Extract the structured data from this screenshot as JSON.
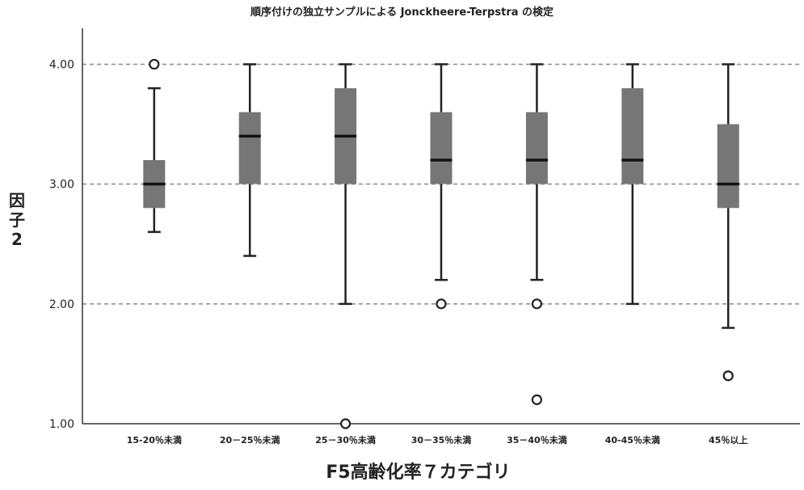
{
  "chart_data": {
    "type": "boxplot",
    "title": "順序付けの独立サンプルによる Jonckheere-Terpstra の検定",
    "xlabel": "F5高齢化率７カテゴリ",
    "ylabel": "因子2",
    "ylim": [
      1.0,
      4.3
    ],
    "yticks": [
      "1.00",
      "2.00",
      "3.00",
      "4.00"
    ],
    "grid": "horizontal dashed at 2.00, 3.00, 4.00",
    "box_color": "#767676",
    "categories": [
      "15-20％未満",
      "20－25％未満",
      "25－30％未満",
      "30－35％未満",
      "35－40％未満",
      "40-45％未満",
      "45％以上"
    ],
    "boxes": [
      {
        "whisker_low": 2.6,
        "q1": 2.8,
        "median": 3.0,
        "q3": 3.2,
        "whisker_high": 3.8,
        "outliers": [
          4.0
        ]
      },
      {
        "whisker_low": 2.4,
        "q1": 3.0,
        "median": 3.4,
        "q3": 3.6,
        "whisker_high": 4.0,
        "outliers": []
      },
      {
        "whisker_low": 2.0,
        "q1": 3.0,
        "median": 3.4,
        "q3": 3.8,
        "whisker_high": 4.0,
        "outliers": [
          1.0
        ]
      },
      {
        "whisker_low": 2.2,
        "q1": 3.0,
        "median": 3.2,
        "q3": 3.6,
        "whisker_high": 4.0,
        "outliers": [
          2.0
        ]
      },
      {
        "whisker_low": 2.2,
        "q1": 3.0,
        "median": 3.2,
        "q3": 3.6,
        "whisker_high": 4.0,
        "outliers": [
          2.0,
          1.2
        ]
      },
      {
        "whisker_low": 2.0,
        "q1": 3.0,
        "median": 3.2,
        "q3": 3.8,
        "whisker_high": 4.0,
        "outliers": []
      },
      {
        "whisker_low": 1.8,
        "q1": 2.8,
        "median": 3.0,
        "q3": 3.5,
        "whisker_high": 4.0,
        "outliers": [
          1.4
        ]
      }
    ]
  }
}
